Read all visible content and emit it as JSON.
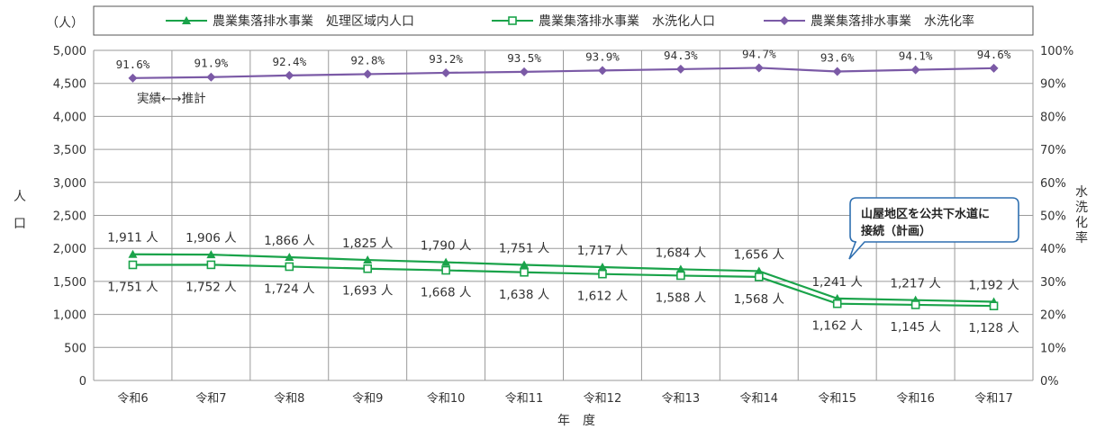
{
  "chart_data": {
    "type": "line",
    "categories": [
      "令和6",
      "令和7",
      "令和8",
      "令和9",
      "令和10",
      "令和11",
      "令和12",
      "令和13",
      "令和14",
      "令和15",
      "令和16",
      "令和17"
    ],
    "series": [
      {
        "name": "農業集落排水事業　処理区域内人口",
        "axis": "left",
        "color": "#1aa34a",
        "marker": "triangle",
        "values": [
          1911,
          1906,
          1866,
          1825,
          1790,
          1751,
          1717,
          1684,
          1656,
          1241,
          1217,
          1192
        ],
        "labels": [
          "1,911 人",
          "1,906 人",
          "1,866 人",
          "1,825 人",
          "1,790 人",
          "1,751 人",
          "1,717 人",
          "1,684 人",
          "1,656 人",
          "1,241 人",
          "1,217 人",
          "1,192 人"
        ]
      },
      {
        "name": "農業集落排水事業　水洗化人口",
        "axis": "left",
        "color": "#1aa34a",
        "marker": "square-open",
        "values": [
          1751,
          1752,
          1724,
          1693,
          1668,
          1638,
          1612,
          1588,
          1568,
          1162,
          1145,
          1128
        ],
        "labels": [
          "1,751 人",
          "1,752 人",
          "1,724 人",
          "1,693 人",
          "1,668 人",
          "1,638 人",
          "1,612 人",
          "1,588 人",
          "1,568 人",
          "1,162 人",
          "1,145 人",
          "1,128 人"
        ]
      },
      {
        "name": "農業集落排水事業　水洗化率",
        "axis": "right",
        "color": "#7b5aa6",
        "marker": "diamond",
        "values": [
          91.6,
          91.9,
          92.4,
          92.8,
          93.2,
          93.5,
          93.9,
          94.3,
          94.7,
          93.6,
          94.1,
          94.6
        ],
        "labels": [
          "91.6%",
          "91.9%",
          "92.4%",
          "92.8%",
          "93.2%",
          "93.5%",
          "93.9%",
          "94.3%",
          "94.7%",
          "93.6%",
          "94.1%",
          "94.6%"
        ]
      }
    ],
    "left_axis": {
      "unit": "（人）",
      "label": "人口",
      "ylim": [
        0,
        5000
      ],
      "ticks": [
        0,
        500,
        1000,
        1500,
        2000,
        2500,
        3000,
        3500,
        4000,
        4500,
        5000
      ],
      "tick_labels": [
        "0",
        "500",
        "1,000",
        "1,500",
        "2,000",
        "2,500",
        "3,000",
        "3,500",
        "4,000",
        "4,500",
        "5,000"
      ]
    },
    "right_axis": {
      "label": "水洗化率",
      "ylim": [
        0,
        100
      ],
      "ticks": [
        0,
        10,
        20,
        30,
        40,
        50,
        60,
        70,
        80,
        90,
        100
      ],
      "tick_labels": [
        "0%",
        "10%",
        "20%",
        "30%",
        "40%",
        "50%",
        "60%",
        "70%",
        "80%",
        "90%",
        "100%"
      ]
    },
    "xlabel": "年　度",
    "annotations": {
      "transition": "実績←→推計",
      "callout": [
        "山屋地区を公共下水道に",
        "接続（計画）"
      ]
    },
    "grid": true,
    "legend": "top"
  }
}
